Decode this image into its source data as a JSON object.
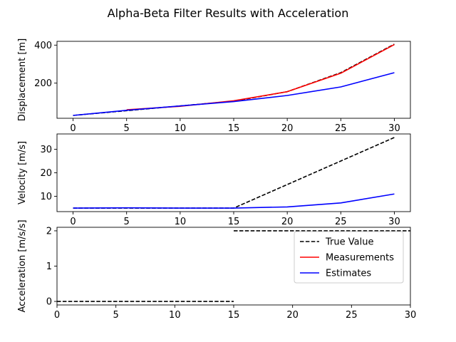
{
  "chart_data": [
    {
      "type": "line",
      "title": "Alpha-Beta Filter Results with Acceleration",
      "ylabel": "Displacement [m]",
      "xlim": [
        -1.5,
        31.5
      ],
      "ylim": [
        15,
        420
      ],
      "xticks": [
        0,
        5,
        10,
        15,
        20,
        25,
        30
      ],
      "yticks": [
        200,
        400
      ],
      "series": [
        {
          "name": "True Value",
          "x": [
            0,
            5,
            10,
            15,
            20,
            25,
            30
          ],
          "y": [
            30,
            55,
            80,
            105,
            155,
            255,
            405
          ],
          "color": "#000000",
          "dash": true
        },
        {
          "name": "Measurements",
          "x": [
            5,
            10,
            15,
            20,
            25,
            30
          ],
          "y": [
            60,
            78,
            107,
            155,
            252,
            403
          ],
          "color": "#ff0000",
          "dash": false
        },
        {
          "name": "Estimates",
          "x": [
            0,
            5,
            10,
            15,
            20,
            25,
            30
          ],
          "y": [
            30,
            57,
            80,
            103,
            135,
            180,
            255
          ],
          "color": "#0000ff",
          "dash": false
        }
      ]
    },
    {
      "type": "line",
      "ylabel": "Velocity [m/s]",
      "xlim": [
        -1.5,
        31.5
      ],
      "ylim": [
        3.5,
        36.5
      ],
      "xticks": [
        0,
        5,
        10,
        15,
        20,
        25,
        30
      ],
      "yticks": [
        10,
        20,
        30
      ],
      "series": [
        {
          "name": "True Value",
          "x": [
            0,
            5,
            10,
            15,
            20,
            25,
            30
          ],
          "y": [
            5,
            5,
            5,
            5,
            15,
            25,
            35
          ],
          "color": "#000000",
          "dash": true
        },
        {
          "name": "Estimates",
          "x": [
            0,
            5,
            10,
            15,
            20,
            25,
            30
          ],
          "y": [
            5,
            5.1,
            5,
            5,
            5.5,
            7.2,
            11
          ],
          "color": "#0000ff",
          "dash": false
        }
      ]
    },
    {
      "type": "line",
      "ylabel": "Acceleration [m/s/s]",
      "xlim": [
        0,
        30
      ],
      "ylim": [
        -0.1,
        2.1
      ],
      "xticks": [
        0,
        5,
        10,
        15,
        20,
        25,
        30
      ],
      "yticks": [
        0,
        1,
        2
      ],
      "legend": {
        "placement": "top-right",
        "entries": [
          {
            "label": "True Value",
            "color": "#000000",
            "dash": true
          },
          {
            "label": "Measurements",
            "color": "#ff0000",
            "dash": false
          },
          {
            "label": "Estimates",
            "color": "#0000ff",
            "dash": false
          }
        ]
      },
      "series": [
        {
          "name": "True Value",
          "x": [
            0,
            15
          ],
          "y": [
            0,
            0
          ],
          "color": "#000000",
          "dash": true
        },
        {
          "name": "True Value",
          "x": [
            15,
            30
          ],
          "y": [
            2,
            2
          ],
          "color": "#000000",
          "dash": true
        }
      ]
    }
  ]
}
